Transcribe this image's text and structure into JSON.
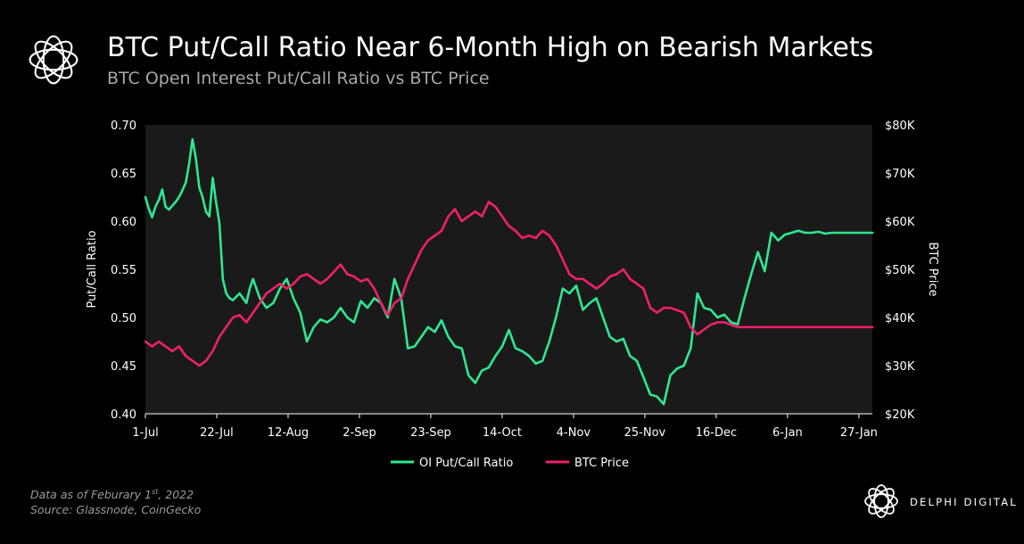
{
  "header": {
    "title": "BTC Put/Call Ratio Near 6-Month High on Bearish Markets",
    "subtitle": "BTC Open Interest Put/Call Ratio vs BTC Price"
  },
  "footnote": {
    "line1_prefix": "Data as of Feburary 1",
    "line1_sup": "st",
    "line1_suffix": ", 2022",
    "line2": "Source:  Glassnode, CoinGecko"
  },
  "brand": {
    "name": "DELPHI DIGITAL"
  },
  "icons": {
    "logo": "flower-logo-icon"
  },
  "chart_data": {
    "type": "line",
    "ylabel": "Put/Call Ratio",
    "y2label": "BTC Price",
    "ylim": [
      0.4,
      0.7
    ],
    "y2lim": [
      20000,
      80000
    ],
    "yticks": [
      "0.40",
      "0.45",
      "0.50",
      "0.55",
      "0.60",
      "0.65",
      "0.70"
    ],
    "y2ticks": [
      "$20K",
      "$30K",
      "$40K",
      "$50K",
      "$60K",
      "$70K",
      "$80K"
    ],
    "xticks": [
      "1-Jul",
      "22-Jul",
      "12-Aug",
      "2-Sep",
      "23-Sep",
      "14-Oct",
      "4-Nov",
      "25-Nov",
      "16-Dec",
      "6-Jan",
      "27-Jan"
    ],
    "grid": false,
    "legend_position": "bottom",
    "background": "#1a1a1a",
    "series": [
      {
        "name": "OI Put/Call Ratio",
        "axis": "left",
        "color": "#2ee88f",
        "x": [
          0,
          1,
          2,
          3,
          4,
          5,
          6,
          7,
          8,
          9,
          10,
          11,
          12,
          13,
          14,
          15,
          16,
          17,
          18,
          19,
          20,
          21,
          22,
          23,
          24,
          25,
          26,
          28,
          30,
          31,
          32,
          34,
          36,
          38,
          40,
          42,
          44,
          46,
          48,
          50,
          52,
          54,
          56,
          58,
          60,
          62,
          64,
          66,
          68,
          70,
          72,
          74,
          76,
          78,
          80,
          82,
          84,
          86,
          88,
          90,
          92,
          94,
          96,
          98,
          100,
          102,
          104,
          106,
          108,
          110,
          112,
          114,
          116,
          118,
          120,
          122,
          124,
          126,
          128,
          130,
          132,
          134,
          136,
          138,
          140,
          142,
          144,
          146,
          148,
          150,
          152,
          154,
          156,
          158,
          160,
          162,
          164,
          166,
          168,
          170,
          172,
          174,
          176,
          178,
          180,
          182,
          184,
          186,
          188,
          190,
          192,
          194,
          196,
          198,
          200,
          202,
          204,
          206,
          208,
          210,
          212,
          214,
          216
        ],
        "values": [
          0.625,
          0.613,
          0.604,
          0.615,
          0.622,
          0.633,
          0.615,
          0.612,
          0.616,
          0.62,
          0.625,
          0.632,
          0.64,
          0.66,
          0.685,
          0.665,
          0.635,
          0.625,
          0.61,
          0.605,
          0.645,
          0.62,
          0.598,
          0.54,
          0.525,
          0.52,
          0.518,
          0.525,
          0.515,
          0.53,
          0.54,
          0.52,
          0.51,
          0.515,
          0.53,
          0.54,
          0.52,
          0.505,
          0.475,
          0.49,
          0.498,
          0.495,
          0.5,
          0.51,
          0.5,
          0.495,
          0.517,
          0.51,
          0.52,
          0.515,
          0.5,
          0.54,
          0.52,
          0.468,
          0.47,
          0.48,
          0.49,
          0.485,
          0.497,
          0.48,
          0.47,
          0.468,
          0.44,
          0.432,
          0.445,
          0.448,
          0.46,
          0.47,
          0.487,
          0.468,
          0.465,
          0.46,
          0.452,
          0.455,
          0.475,
          0.5,
          0.53,
          0.525,
          0.533,
          0.508,
          0.515,
          0.52,
          0.5,
          0.48,
          0.475,
          0.478,
          0.46,
          0.455,
          0.438,
          0.42,
          0.418,
          0.41,
          0.44,
          0.447,
          0.45,
          0.468,
          0.525,
          0.51,
          0.508,
          0.5,
          0.503,
          0.495,
          0.493,
          0.52,
          0.545,
          0.568,
          0.548,
          0.588,
          0.58,
          0.586,
          0.588,
          0.59,
          0.588,
          0.588,
          0.589,
          0.587,
          0.588,
          0.588,
          0.588,
          0.588,
          0.588,
          0.588,
          0.588
        ]
      },
      {
        "name": "BTC Price",
        "axis": "right",
        "color": "#f0206a",
        "x": [
          0,
          2,
          4,
          6,
          8,
          10,
          12,
          14,
          16,
          18,
          20,
          22,
          24,
          26,
          28,
          30,
          32,
          34,
          36,
          38,
          40,
          42,
          44,
          46,
          48,
          50,
          52,
          54,
          56,
          58,
          60,
          62,
          64,
          66,
          68,
          70,
          72,
          74,
          76,
          78,
          80,
          82,
          84,
          86,
          88,
          90,
          92,
          94,
          96,
          98,
          100,
          102,
          104,
          106,
          108,
          110,
          112,
          114,
          116,
          118,
          120,
          122,
          124,
          126,
          128,
          130,
          132,
          134,
          136,
          138,
          140,
          142,
          144,
          146,
          148,
          150,
          152,
          154,
          156,
          158,
          160,
          162,
          164,
          166,
          168,
          170,
          172,
          174,
          176,
          178,
          180,
          182,
          184,
          186,
          188,
          190,
          192,
          194,
          196,
          198,
          200,
          202,
          204,
          206,
          208,
          210,
          212,
          214,
          216
        ],
        "values": [
          35000,
          34000,
          35000,
          34000,
          33000,
          34000,
          32000,
          31000,
          30000,
          31000,
          33000,
          36000,
          38000,
          40000,
          40500,
          39000,
          41000,
          43000,
          45000,
          46000,
          47000,
          46000,
          47000,
          48500,
          49000,
          48000,
          47000,
          48000,
          49500,
          51000,
          49000,
          48500,
          47500,
          48000,
          46000,
          43000,
          40500,
          43000,
          44000,
          48000,
          51000,
          54000,
          56000,
          57000,
          58000,
          61000,
          62500,
          60000,
          61000,
          62000,
          61000,
          64000,
          63000,
          61000,
          59000,
          58000,
          56500,
          57000,
          56500,
          58000,
          57000,
          55000,
          52000,
          49000,
          48000,
          48000,
          47000,
          46000,
          47000,
          48500,
          49000,
          50000,
          48000,
          47000,
          46000,
          42000,
          41000,
          42000,
          42000,
          41500,
          41000,
          38000,
          36500,
          37500,
          38500,
          39000,
          39000,
          38500,
          38000,
          38000,
          38000,
          38000,
          38000,
          38000,
          38000,
          38000,
          38000,
          38000,
          38000,
          38000,
          38000,
          38000,
          38000,
          38000,
          38000,
          38000,
          38000,
          38000,
          38000
        ]
      }
    ]
  }
}
